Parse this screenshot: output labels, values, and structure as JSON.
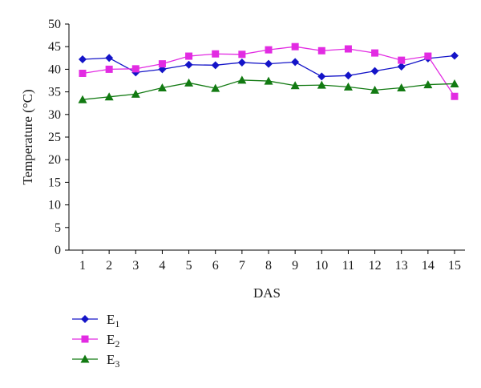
{
  "chart_data": {
    "type": "line",
    "xlabel": "DAS",
    "ylabel": "Temperature (°C)",
    "x": [
      1,
      2,
      3,
      4,
      5,
      6,
      7,
      8,
      9,
      10,
      11,
      12,
      13,
      14,
      15
    ],
    "ylim": [
      0,
      50
    ],
    "yticks": [
      0,
      5,
      10,
      15,
      20,
      25,
      30,
      35,
      40,
      45,
      50
    ],
    "grid": false,
    "legend_position": "bottom-left",
    "series": [
      {
        "name": "E1",
        "name_base": "E",
        "name_sub": "1",
        "color": "#1414c8",
        "marker": "diamond",
        "values": [
          42.2,
          42.5,
          39.3,
          40.0,
          41.0,
          40.9,
          41.5,
          41.2,
          41.6,
          38.4,
          38.6,
          39.6,
          40.6,
          42.4,
          43.0
        ]
      },
      {
        "name": "E2",
        "name_base": "E",
        "name_sub": "2",
        "color": "#e22be2",
        "marker": "square",
        "values": [
          39.1,
          40.0,
          40.1,
          41.2,
          42.9,
          43.4,
          43.3,
          44.3,
          45.0,
          44.1,
          44.5,
          43.6,
          42.0,
          42.9,
          34.0
        ]
      },
      {
        "name": "E3",
        "name_base": "E",
        "name_sub": "3",
        "color": "#127a12",
        "marker": "triangle",
        "values": [
          33.3,
          33.9,
          34.5,
          35.9,
          37.0,
          35.8,
          37.6,
          37.4,
          36.4,
          36.5,
          36.1,
          35.4,
          35.9,
          36.6,
          36.8
        ]
      }
    ]
  }
}
